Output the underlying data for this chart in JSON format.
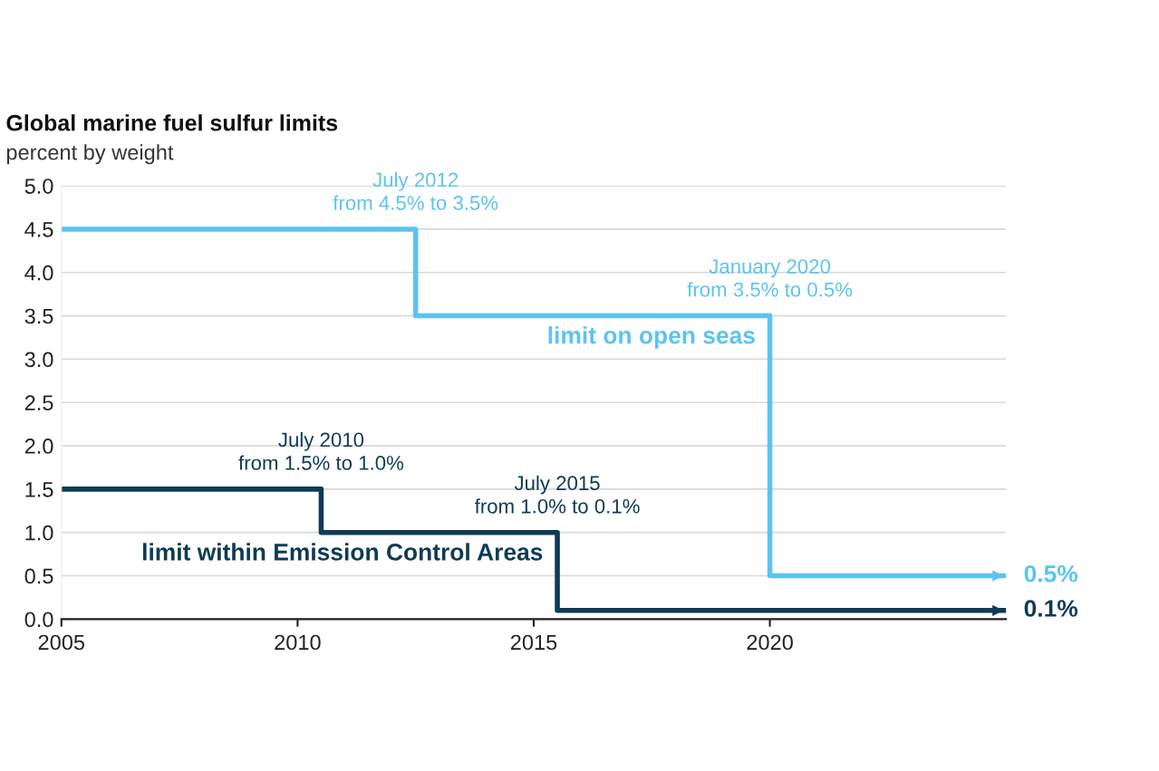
{
  "chart_data": {
    "type": "step",
    "title": "Global marine fuel sulfur limits",
    "subtitle": "percent by weight",
    "series": [
      {
        "name": "limit on open seas",
        "color": "#5bc4f1",
        "x": [
          2005,
          2012.5,
          2020,
          2025
        ],
        "values": [
          4.5,
          3.5,
          0.5,
          0.5
        ]
      },
      {
        "name": "limit within Emission Control Areas",
        "color": "#0f3b55",
        "x": [
          2005,
          2010.5,
          2015.5,
          2025
        ],
        "values": [
          1.5,
          1.0,
          0.1,
          0.1
        ]
      }
    ],
    "xlim": [
      2005,
      2025
    ],
    "xticks": [
      2005,
      2010,
      2015,
      2020
    ],
    "ylim": [
      0,
      5
    ],
    "yticks": [
      {
        "value": 0,
        "label": "0.0"
      },
      {
        "value": 0.5,
        "label": "0.5"
      },
      {
        "value": 1,
        "label": "1.0"
      },
      {
        "value": 1.5,
        "label": "1.5"
      },
      {
        "value": 2,
        "label": "2.0"
      },
      {
        "value": 2.5,
        "label": "2.5"
      },
      {
        "value": 3,
        "label": "3.0"
      },
      {
        "value": 3.5,
        "label": "3.5"
      },
      {
        "value": 4,
        "label": "4.0"
      },
      {
        "value": 4.5,
        "label": "4.5"
      },
      {
        "value": 5,
        "label": "5.0"
      }
    ],
    "grid": "y",
    "legend": false,
    "annotations": [
      {
        "text": "July 2012\nfrom 4.5% to 3.5%",
        "x": 2012.5,
        "y": 4.5
      },
      {
        "text": "January 2020\nfrom 3.5% to 0.5%",
        "x": 2020,
        "y": 3.5
      },
      {
        "text": "July 2010\nfrom 1.5% to 1.0%",
        "x": 2010.5,
        "y": 1.5
      },
      {
        "text": "July 2015\nfrom 1.0% to 0.1%",
        "x": 2015.5,
        "y": 1.0
      },
      {
        "text": "0.5%",
        "x": 2025,
        "y": 0.5
      },
      {
        "text": "0.1%",
        "x": 2025,
        "y": 0.1
      }
    ]
  }
}
